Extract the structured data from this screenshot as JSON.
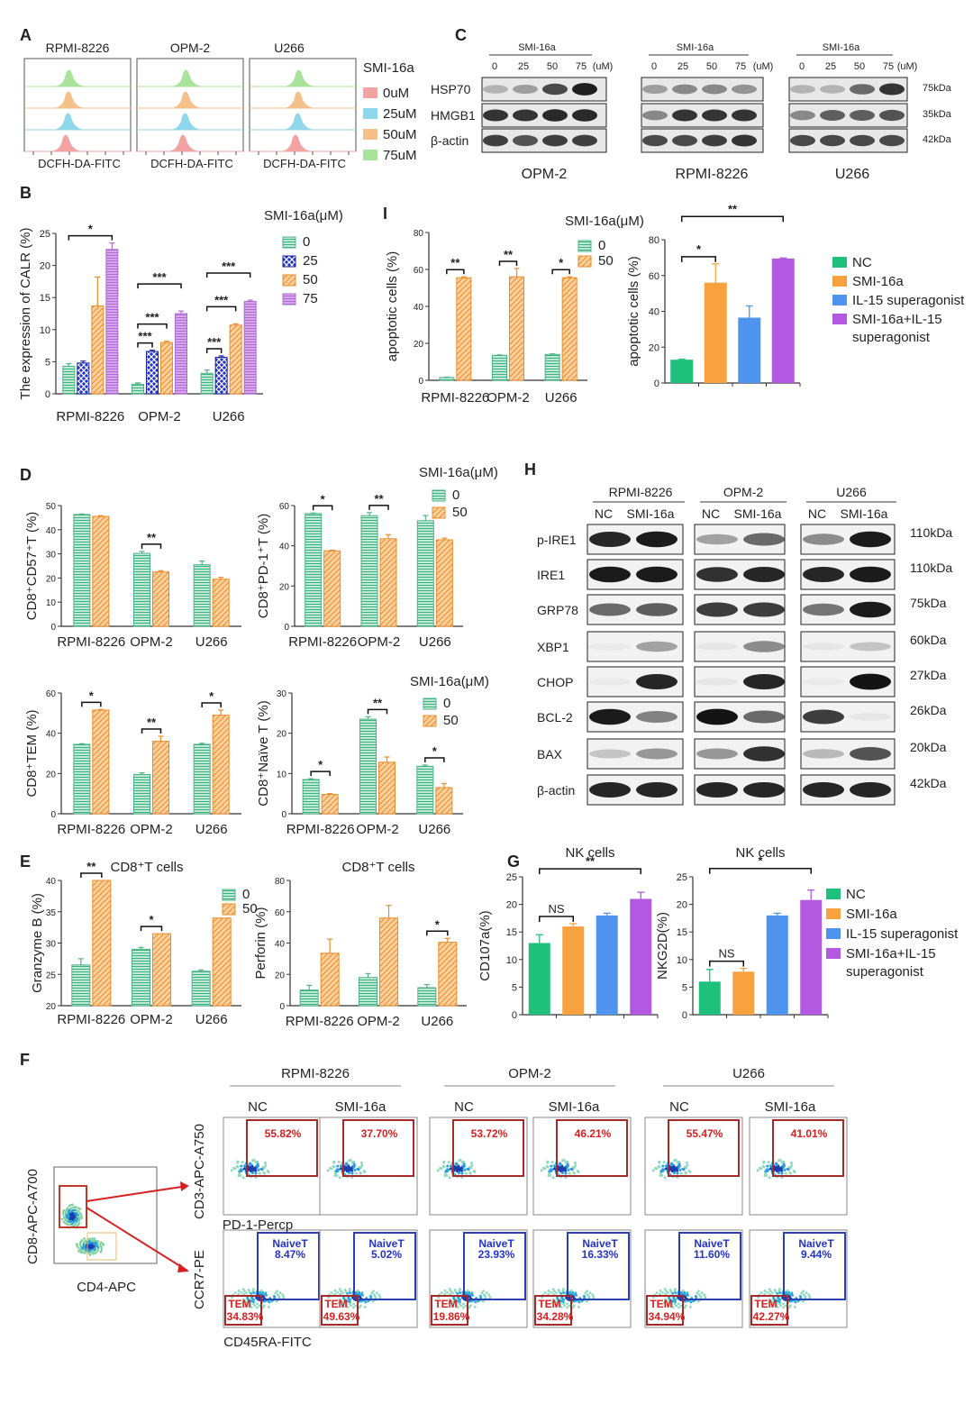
{
  "panels": {
    "A": {
      "letter": "A",
      "lines": [
        "RPMI-8226",
        "OPM-2",
        "U266"
      ],
      "xlabel": "DCFH-DA-FITC",
      "legend_title": "SMI-16a",
      "legend": [
        {
          "label": "0uM",
          "color": "#f4a3a3"
        },
        {
          "label": "25uM",
          "color": "#8fd8ec"
        },
        {
          "label": "50uM",
          "color": "#f6c08a"
        },
        {
          "label": "75uM",
          "color": "#a9e49a"
        }
      ]
    },
    "C": {
      "letter": "C",
      "blots": [
        {
          "cell": "OPM-2",
          "drug": "SMI-16a",
          "doses": [
            "0",
            "25",
            "50",
            "75"
          ],
          "unit": "(uM)"
        },
        {
          "cell": "RPMI-8226",
          "drug": "SMI-16a",
          "doses": [
            "0",
            "25",
            "50",
            "75"
          ],
          "unit": "(uM)"
        },
        {
          "cell": "U266",
          "drug": "SMI-16a",
          "doses": [
            "0",
            "25",
            "50",
            "75"
          ],
          "unit": "(uM)"
        }
      ],
      "proteins": [
        "HSP70",
        "HMGB1",
        "β-actin"
      ],
      "sizes": [
        "75kDa",
        "35kDa",
        "42kDa"
      ]
    },
    "F": {
      "letter": "F",
      "gate_x": "CD4-APC",
      "gate_y": "CD8-APC-A700",
      "y_top": "CD3-APC-A750",
      "x_top": "PD-1-Percp",
      "y_bot": "CCR7-PE",
      "x_bot": "CD45RA-FITC",
      "groups": [
        {
          "cell": "RPMI-8226",
          "conds": [
            {
              "name": "NC",
              "pd1": "55.82%",
              "naive_label": "NaiveT",
              "naive": "8.47%",
              "tem_label": "TEM",
              "tem": "34.83%"
            },
            {
              "name": "SMI-16a",
              "pd1": "37.70%",
              "naive_label": "NaiveT",
              "naive": "5.02%",
              "tem_label": "TEM",
              "tem": "49.63%"
            }
          ]
        },
        {
          "cell": "OPM-2",
          "conds": [
            {
              "name": "NC",
              "pd1": "53.72%",
              "naive_label": "NaiveT",
              "naive": "23.93%",
              "tem_label": "TEM",
              "tem": "19.86%"
            },
            {
              "name": "SMI-16a",
              "pd1": "46.21%",
              "naive_label": "NaiveT",
              "naive": "16.33%",
              "tem_label": "TEM",
              "tem": "34.28%"
            }
          ]
        },
        {
          "cell": "U266",
          "conds": [
            {
              "name": "NC",
              "pd1": "55.47%",
              "naive_label": "NaiveT",
              "naive": "11.60%",
              "tem_label": "TEM",
              "tem": "34.94%"
            },
            {
              "name": "SMI-16a",
              "pd1": "41.01%",
              "naive_label": "NaiveT",
              "naive": "9.44%",
              "tem_label": "TEM",
              "tem": "42.27%"
            }
          ]
        }
      ]
    },
    "H": {
      "letter": "H",
      "cells": [
        {
          "name": "RPMI-8226",
          "conds": [
            "NC",
            "SMI-16a"
          ]
        },
        {
          "name": "OPM-2",
          "conds": [
            "NC",
            "SMI-16a"
          ]
        },
        {
          "name": "U266",
          "conds": [
            "NC",
            "SMI-16a"
          ]
        }
      ],
      "rows": [
        {
          "protein": "p-IRE1",
          "size": "110kDa"
        },
        {
          "protein": "IRE1",
          "size": "110kDa"
        },
        {
          "protein": "GRP78",
          "size": "75kDa"
        },
        {
          "protein": "XBP1",
          "size": "60kDa"
        },
        {
          "protein": "CHOP",
          "size": "27kDa"
        },
        {
          "protein": "BCL-2",
          "size": "26kDa"
        },
        {
          "protein": "BAX",
          "size": "20kDa"
        },
        {
          "protein": "β-actin",
          "size": "42kDa"
        }
      ]
    }
  },
  "legends": {
    "smi4": {
      "title": "SMI-16a(μM)",
      "items": [
        {
          "label": "0",
          "color": "#8fd3b8"
        },
        {
          "label": "25",
          "color": "#2433c8"
        },
        {
          "label": "50",
          "color": "#f6b36a"
        },
        {
          "label": "75",
          "color": "#c98de0"
        }
      ]
    },
    "smi2": {
      "title": "SMI-16a(μM)",
      "items": [
        {
          "label": "0",
          "color": "#8fd3b8"
        },
        {
          "label": "50",
          "color": "#f6b36a"
        }
      ]
    },
    "E": {
      "items": [
        {
          "label": "0",
          "color": "#8fd3b8"
        },
        {
          "label": "50",
          "color": "#f6b36a"
        }
      ]
    },
    "four_right": {
      "items": [
        {
          "label": "NC",
          "color": "#1fbf7c"
        },
        {
          "label": "SMI-16a",
          "color": "#f7a23e"
        },
        {
          "label": "IL-15 superagonist",
          "color": "#4f95f0"
        },
        {
          "label": "SMI-16a+IL-15 superagonist",
          "color": "#b358e0"
        }
      ]
    }
  },
  "chart_data": [
    {
      "id": "B",
      "letter": "B",
      "type": "bar",
      "ylabel": "The expression of CALR (%)",
      "ylim": [
        0,
        25
      ],
      "yticks": [
        0,
        5,
        10,
        15,
        20,
        25
      ],
      "categories": [
        "RPMI-8226",
        "OPM-2",
        "U266"
      ],
      "series": [
        {
          "name": "0",
          "values": [
            4.3,
            1.5,
            3.2
          ],
          "err": [
            0.4,
            0.2,
            0.5
          ]
        },
        {
          "name": "25",
          "values": [
            4.8,
            6.6,
            5.7
          ],
          "err": [
            0.3,
            0.2,
            0.2
          ]
        },
        {
          "name": "50",
          "values": [
            13.7,
            8.0,
            10.7
          ],
          "err": [
            4.5,
            0.2,
            0.2
          ]
        },
        {
          "name": "75",
          "values": [
            22.5,
            12.5,
            14.4
          ],
          "err": [
            1.0,
            0.4,
            0.2
          ]
        }
      ],
      "sig": [
        {
          "text": "*",
          "cat": 0,
          "a": 0,
          "b": 3,
          "level": 0
        },
        {
          "text": "***",
          "cat": 1,
          "a": 0,
          "b": 1,
          "level": 0
        },
        {
          "text": "***",
          "cat": 1,
          "a": 0,
          "b": 2,
          "level": 1
        },
        {
          "text": "***",
          "cat": 1,
          "a": 0,
          "b": 3,
          "level": 2
        },
        {
          "text": "***",
          "cat": 2,
          "a": 0,
          "b": 1,
          "level": 0
        },
        {
          "text": "***",
          "cat": 2,
          "a": 0,
          "b": 2,
          "level": 1
        },
        {
          "text": "***",
          "cat": 2,
          "a": 0,
          "b": 3,
          "level": 2
        }
      ]
    },
    {
      "id": "I1",
      "letter": "I",
      "type": "bar",
      "ylabel": "apoptotic cells (%)",
      "ylim": [
        0,
        80
      ],
      "yticks": [
        0,
        20,
        40,
        60,
        80
      ],
      "categories": [
        "RPMI-8226",
        "OPM-2",
        "U266"
      ],
      "series": [
        {
          "name": "0",
          "values": [
            1.5,
            13.5,
            14.0
          ],
          "err": [
            0.2,
            0.3,
            0.3
          ]
        },
        {
          "name": "50",
          "values": [
            55.5,
            56.0,
            55.5
          ],
          "err": [
            0.5,
            4.5,
            0.5
          ]
        }
      ],
      "sig": [
        {
          "text": "**",
          "cat": 0,
          "a": 0,
          "b": 1,
          "level": 0
        },
        {
          "text": "**",
          "cat": 1,
          "a": 0,
          "b": 1,
          "level": 0
        },
        {
          "text": "*",
          "cat": 2,
          "a": 0,
          "b": 1,
          "level": 0
        }
      ]
    },
    {
      "id": "I2",
      "type": "bar",
      "ylabel": "apoptotic cells (%)",
      "ylim": [
        0,
        80
      ],
      "yticks": [
        0,
        20,
        40,
        60,
        80
      ],
      "categories": [
        "NC",
        "SMI-16a",
        "IL-15 superagonist",
        "SMI-16a+IL-15 superagonist"
      ],
      "values": [
        13,
        56,
        36.5,
        69.5
      ],
      "err": [
        0.3,
        10.5,
        6.5,
        0.3
      ],
      "sig": [
        {
          "text": "*",
          "a": 0,
          "b": 1,
          "level": 0
        },
        {
          "text": "**",
          "a": 0,
          "b": 3,
          "level": 1
        }
      ]
    },
    {
      "id": "D1",
      "letter": "D",
      "type": "bar",
      "ylabel": "CD8⁺CD57⁺T (%)",
      "ylim": [
        0,
        50
      ],
      "yticks": [
        0,
        10,
        20,
        30,
        40,
        50
      ],
      "categories": [
        "RPMI-8226",
        "OPM-2",
        "U266"
      ],
      "series": [
        {
          "name": "0",
          "values": [
            46.3,
            30.2,
            25.5
          ],
          "err": [
            0.2,
            0.8,
            1.5
          ]
        },
        {
          "name": "50",
          "values": [
            45.5,
            22.5,
            19.5
          ],
          "err": [
            0.3,
            0.5,
            0.8
          ]
        }
      ],
      "sig": [
        {
          "text": "**",
          "cat": 1,
          "a": 0,
          "b": 1,
          "level": 0
        }
      ]
    },
    {
      "id": "D2",
      "type": "bar",
      "ylabel": "CD8⁺PD-1⁺T (%)",
      "ylim": [
        0,
        60
      ],
      "yticks": [
        0,
        20,
        40,
        60
      ],
      "categories": [
        "RPMI-8226",
        "OPM-2",
        "U266"
      ],
      "series": [
        {
          "name": "0",
          "values": [
            56,
            55,
            52.5
          ],
          "err": [
            0.3,
            1.5,
            2.5
          ]
        },
        {
          "name": "50",
          "values": [
            37.5,
            43.5,
            43
          ],
          "err": [
            0.3,
            2,
            0.8
          ]
        }
      ],
      "sig": [
        {
          "text": "*",
          "cat": 0,
          "a": 0,
          "b": 1,
          "level": 0
        },
        {
          "text": "**",
          "cat": 1,
          "a": 0,
          "b": 1,
          "level": 0
        }
      ]
    },
    {
      "id": "D3",
      "type": "bar",
      "ylabel": "CD8⁺TEM (%)",
      "ylim": [
        0,
        60
      ],
      "yticks": [
        0,
        20,
        40,
        60
      ],
      "categories": [
        "RPMI-8226",
        "OPM-2",
        "U266"
      ],
      "series": [
        {
          "name": "0",
          "values": [
            34.5,
            19.5,
            34.5
          ],
          "err": [
            0.3,
            0.8,
            0.5
          ]
        },
        {
          "name": "50",
          "values": [
            51.5,
            36,
            49
          ],
          "err": [
            0.3,
            2.5,
            2.5
          ]
        }
      ],
      "sig": [
        {
          "text": "*",
          "cat": 0,
          "a": 0,
          "b": 1,
          "level": 0
        },
        {
          "text": "**",
          "cat": 1,
          "a": 0,
          "b": 1,
          "level": 0
        },
        {
          "text": "*",
          "cat": 2,
          "a": 0,
          "b": 1,
          "level": 0
        }
      ]
    },
    {
      "id": "D4",
      "type": "bar",
      "ylabel": "CD8⁺Naïve T (%)",
      "ylim": [
        0,
        30
      ],
      "yticks": [
        0,
        10,
        20,
        30
      ],
      "categories": [
        "RPMI-8226",
        "OPM-2",
        "U266"
      ],
      "series": [
        {
          "name": "0",
          "values": [
            8.5,
            23.5,
            11.8
          ],
          "err": [
            0.2,
            0.6,
            0.3
          ]
        },
        {
          "name": "50",
          "values": [
            4.8,
            12.8,
            6.5
          ],
          "err": [
            0.2,
            1.3,
            1
          ]
        }
      ],
      "sig": [
        {
          "text": "*",
          "cat": 0,
          "a": 0,
          "b": 1,
          "level": 0
        },
        {
          "text": "**",
          "cat": 1,
          "a": 0,
          "b": 1,
          "level": 0
        },
        {
          "text": "*",
          "cat": 2,
          "a": 0,
          "b": 1,
          "level": 0
        }
      ]
    },
    {
      "id": "E1",
      "letter": "E",
      "type": "bar",
      "title": "CD8⁺T cells",
      "ylabel": "Granzyme B (%)",
      "ylim": [
        20,
        40
      ],
      "yticks": [
        20,
        25,
        30,
        35,
        40
      ],
      "categories": [
        "RPMI-8226",
        "OPM-2",
        "U266"
      ],
      "series": [
        {
          "name": "0",
          "values": [
            26.5,
            29,
            25.5
          ],
          "err": [
            1,
            0.3,
            0.2
          ]
        },
        {
          "name": "50",
          "values": [
            40,
            31.5,
            34
          ]
        }
      ],
      "sig": [
        {
          "text": "**",
          "cat": 0,
          "a": 0,
          "b": 1,
          "level": 0
        },
        {
          "text": "*",
          "cat": 1,
          "a": 0,
          "b": 1,
          "level": 0
        }
      ]
    },
    {
      "id": "E2",
      "type": "bar",
      "title": "CD8⁺T cells",
      "ylabel": "Perforin (%)",
      "ylim": [
        0,
        80
      ],
      "yticks": [
        0,
        20,
        40,
        60,
        80
      ],
      "categories": [
        "RPMI-8226",
        "OPM-2",
        "U266"
      ],
      "series": [
        {
          "name": "0",
          "values": [
            10,
            18,
            11.5
          ],
          "err": [
            3,
            2.5,
            2
          ]
        },
        {
          "name": "50",
          "values": [
            33.5,
            56,
            40.5
          ],
          "err": [
            9,
            8,
            2.5
          ]
        }
      ],
      "sig": [
        {
          "text": "*",
          "cat": 2,
          "a": 0,
          "b": 1,
          "level": 0
        }
      ]
    },
    {
      "id": "G1",
      "letter": "G",
      "type": "bar",
      "title": "NK cells",
      "ylabel": "CD107a(%)",
      "ylim": [
        0,
        25
      ],
      "yticks": [
        0,
        5,
        10,
        15,
        20,
        25
      ],
      "categories": [
        "NC",
        "SMI-16a",
        "IL-15 superagonist",
        "SMI-16a+IL-15 superagonist"
      ],
      "values": [
        13,
        16,
        18,
        21
      ],
      "err": [
        1.5,
        0.5,
        0.4,
        1.2
      ],
      "sig": [
        {
          "text": "NS",
          "a": 0,
          "b": 1,
          "level": 0
        },
        {
          "text": "**",
          "a": 0,
          "b": 3,
          "level": 1
        }
      ]
    },
    {
      "id": "G2",
      "type": "bar",
      "title": "NK cells",
      "ylabel": "NKG2D(%)",
      "ylim": [
        0,
        25
      ],
      "yticks": [
        0,
        5,
        10,
        15,
        20,
        25
      ],
      "categories": [
        "NC",
        "SMI-16a",
        "IL-15 superagonist",
        "SMI-16a+IL-15 superagonist"
      ],
      "values": [
        6,
        7.8,
        18,
        20.8
      ],
      "err": [
        2.2,
        0.6,
        0.4,
        1.8
      ],
      "sig": [
        {
          "text": "NS",
          "a": 0,
          "b": 1,
          "level": 0
        },
        {
          "text": "*",
          "a": 0,
          "b": 3,
          "level": 1
        }
      ]
    }
  ]
}
